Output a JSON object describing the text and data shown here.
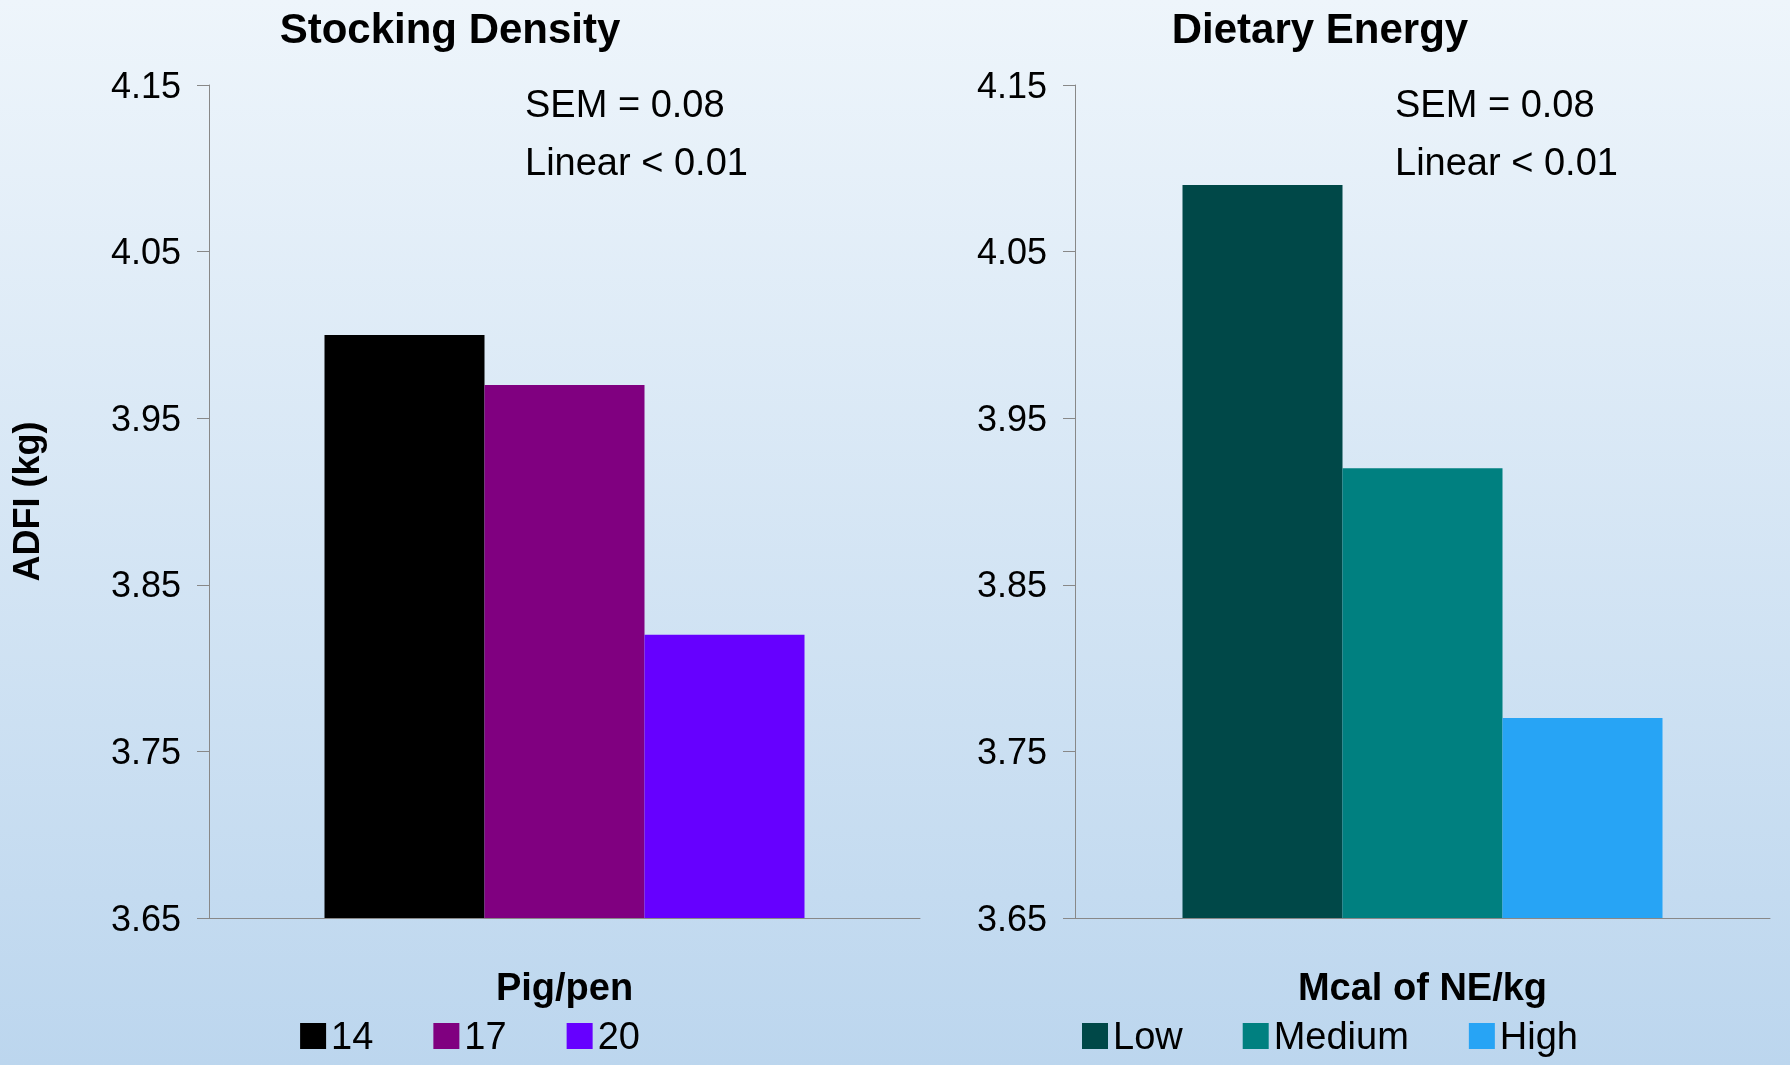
{
  "chart_data": [
    {
      "type": "bar",
      "title": "Stocking Density",
      "xlabel": "Pig/pen",
      "ylabel": "ADFI (kg)",
      "categories": [
        null
      ],
      "series": [
        {
          "name": "14",
          "color": "#000000",
          "values": [
            4.0
          ]
        },
        {
          "name": "17",
          "color": "#800080",
          "values": [
            3.97
          ]
        },
        {
          "name": "20",
          "color": "#6600ff",
          "values": [
            3.82
          ]
        }
      ],
      "ylim": [
        3.65,
        4.15
      ],
      "yticks": [
        3.65,
        3.75,
        3.85,
        3.95,
        4.05,
        4.15
      ],
      "annotations": [
        "SEM = 0.08",
        "Linear < 0.01"
      ],
      "legend": "bottom",
      "grid": false
    },
    {
      "type": "bar",
      "title": "Dietary Energy",
      "xlabel": "Mcal of NE/kg",
      "categories": [
        null
      ],
      "series": [
        {
          "name": "Low",
          "color": "#004848",
          "values": [
            4.09
          ]
        },
        {
          "name": "Medium",
          "color": "#008080",
          "values": [
            3.92
          ]
        },
        {
          "name": "High",
          "color": "#27a4f5",
          "values": [
            3.77
          ]
        }
      ],
      "ylim": [
        3.65,
        4.15
      ],
      "yticks": [
        3.65,
        3.75,
        3.85,
        3.95,
        4.05,
        4.15
      ],
      "annotations": [
        "SEM = 0.08",
        "Linear < 0.01"
      ],
      "legend": "bottom",
      "grid": false
    }
  ]
}
